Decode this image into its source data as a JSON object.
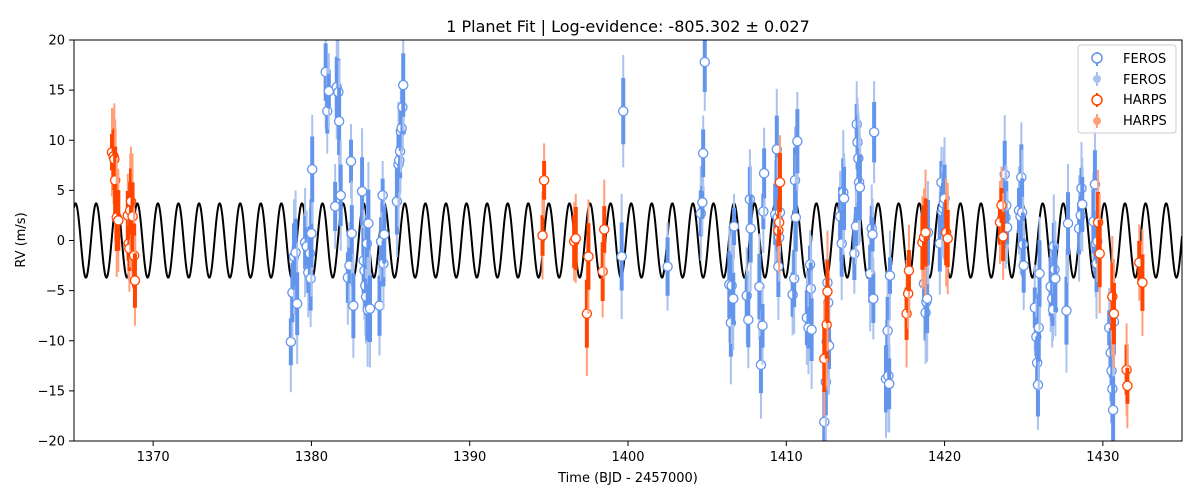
{
  "chart_data": {
    "type": "scatter",
    "title": "1 Planet Fit | Log-evidence: -805.302 ± 0.027",
    "xlabel": "Time (BJD - 2457000)",
    "ylabel": "RV (m/s)",
    "xlim": [
      1365,
      1435
    ],
    "ylim": [
      -20,
      20
    ],
    "xticks": [
      1370,
      1380,
      1390,
      1400,
      1410,
      1420,
      1430
    ],
    "yticks": [
      -20,
      -15,
      -10,
      -5,
      0,
      5,
      10,
      15,
      20
    ],
    "grid": false,
    "legend_position": "top-right",
    "legend": [
      {
        "label": "FEROS",
        "style": "open-circle",
        "color": "#6495ed"
      },
      {
        "label": "FEROS",
        "style": "faint-dot",
        "color": "#a9c2ef"
      },
      {
        "label": "HARPS",
        "style": "open-circle",
        "color": "#ff4500"
      },
      {
        "label": "HARPS",
        "style": "faint-dot",
        "color": "#ffa07a"
      }
    ],
    "model": {
      "amplitude": 3.7,
      "period": 1.3,
      "phase_ref": 1365.1,
      "color": "#000000"
    },
    "series": [
      {
        "name": "FEROS",
        "color": "#6495ed",
        "jitter_color": "#a9c2ef",
        "points": [
          [
            1378.7,
            -10.1
          ],
          [
            1378.8,
            -5.2
          ],
          [
            1378.9,
            -1.6
          ],
          [
            1379.0,
            -1.2
          ],
          [
            1379.1,
            -6.3
          ],
          [
            1379.6,
            -0.2
          ],
          [
            1379.7,
            -0.6
          ],
          [
            1379.8,
            -3.2
          ],
          [
            1379.9,
            -1.3
          ],
          [
            1379.95,
            -3.8
          ],
          [
            1380.0,
            0.7
          ],
          [
            1380.05,
            7.1
          ],
          [
            1380.9,
            16.8
          ],
          [
            1381.0,
            12.9
          ],
          [
            1381.1,
            14.9
          ],
          [
            1381.5,
            3.4
          ],
          [
            1381.6,
            15.3
          ],
          [
            1381.7,
            14.8
          ],
          [
            1381.75,
            11.9
          ],
          [
            1381.85,
            4.5
          ],
          [
            1382.3,
            -3.7
          ],
          [
            1382.4,
            -2.5
          ],
          [
            1382.5,
            7.9
          ],
          [
            1382.55,
            0.7
          ],
          [
            1382.65,
            -6.5
          ],
          [
            1383.2,
            4.9
          ],
          [
            1383.3,
            -2.0
          ],
          [
            1383.35,
            -3.0
          ],
          [
            1383.4,
            -4.5
          ],
          [
            1383.45,
            -5.6
          ],
          [
            1383.5,
            -0.3
          ],
          [
            1383.55,
            -6.9
          ],
          [
            1383.6,
            1.7
          ],
          [
            1383.7,
            -6.8
          ],
          [
            1384.3,
            -6.5
          ],
          [
            1384.4,
            -0.1
          ],
          [
            1384.5,
            4.5
          ],
          [
            1384.55,
            -2.3
          ],
          [
            1384.6,
            0.6
          ],
          [
            1385.4,
            3.9
          ],
          [
            1385.5,
            7.6
          ],
          [
            1385.55,
            8.0
          ],
          [
            1385.6,
            8.9
          ],
          [
            1385.65,
            10.9
          ],
          [
            1385.7,
            11.2
          ],
          [
            1385.75,
            13.3
          ],
          [
            1385.8,
            15.5
          ],
          [
            1399.6,
            -1.6
          ],
          [
            1399.7,
            12.9
          ],
          [
            1402.5,
            -2.6
          ],
          [
            1404.6,
            2.7
          ],
          [
            1404.7,
            3.8
          ],
          [
            1404.75,
            8.7
          ],
          [
            1404.85,
            17.8
          ],
          [
            1406.4,
            -4.4
          ],
          [
            1406.5,
            -8.2
          ],
          [
            1406.55,
            -4.5
          ],
          [
            1406.65,
            -5.8
          ],
          [
            1406.7,
            1.4
          ],
          [
            1407.5,
            -5.5
          ],
          [
            1407.6,
            -7.9
          ],
          [
            1407.7,
            4.1
          ],
          [
            1407.75,
            1.2
          ],
          [
            1408.3,
            -4.6
          ],
          [
            1408.4,
            -12.4
          ],
          [
            1408.5,
            -8.5
          ],
          [
            1408.55,
            2.9
          ],
          [
            1408.6,
            6.7
          ],
          [
            1409.3,
            2.6
          ],
          [
            1409.4,
            9.1
          ],
          [
            1409.45,
            2.3
          ],
          [
            1409.5,
            -2.6
          ],
          [
            1409.55,
            0.3
          ],
          [
            1409.6,
            2.8
          ],
          [
            1410.4,
            -5.4
          ],
          [
            1410.5,
            -3.8
          ],
          [
            1410.55,
            6.0
          ],
          [
            1410.6,
            2.3
          ],
          [
            1410.7,
            9.9
          ],
          [
            1411.3,
            -7.7
          ],
          [
            1411.4,
            -8.7
          ],
          [
            1411.5,
            -2.4
          ],
          [
            1411.55,
            -4.8
          ],
          [
            1411.6,
            -8.9
          ],
          [
            1412.4,
            -18.1
          ],
          [
            1412.5,
            -14.1
          ],
          [
            1412.55,
            -10.1
          ],
          [
            1412.6,
            -4.2
          ],
          [
            1412.65,
            -6.2
          ],
          [
            1412.7,
            -10.5
          ],
          [
            1413.4,
            2.4
          ],
          [
            1413.5,
            -0.3
          ],
          [
            1413.6,
            4.8
          ],
          [
            1413.65,
            4.2
          ],
          [
            1414.3,
            -1.3
          ],
          [
            1414.4,
            1.4
          ],
          [
            1414.45,
            11.6
          ],
          [
            1414.5,
            9.8
          ],
          [
            1414.55,
            8.2
          ],
          [
            1414.6,
            5.8
          ],
          [
            1414.65,
            5.3
          ],
          [
            1415.3,
            -3.3
          ],
          [
            1415.4,
            1.2
          ],
          [
            1415.45,
            0.6
          ],
          [
            1415.5,
            -5.8
          ],
          [
            1415.55,
            10.8
          ],
          [
            1416.3,
            -13.8
          ],
          [
            1416.4,
            -9.0
          ],
          [
            1416.45,
            -13.5
          ],
          [
            1416.5,
            -14.3
          ],
          [
            1416.55,
            -3.5
          ],
          [
            1418.7,
            -4.3
          ],
          [
            1418.8,
            -7.2
          ],
          [
            1418.85,
            -6.1
          ],
          [
            1418.9,
            -5.8
          ],
          [
            1418.95,
            0.8
          ],
          [
            1419.7,
            -0.3
          ],
          [
            1419.8,
            5.8
          ],
          [
            1419.85,
            2.9
          ],
          [
            1419.9,
            3.2
          ],
          [
            1419.95,
            3.7
          ],
          [
            1420.0,
            4.2
          ],
          [
            1423.8,
            6.6
          ],
          [
            1423.85,
            2.3
          ],
          [
            1423.9,
            3.5
          ],
          [
            1423.95,
            1.3
          ],
          [
            1424.7,
            3.0
          ],
          [
            1424.8,
            2.4
          ],
          [
            1424.85,
            6.3
          ],
          [
            1424.9,
            2.8
          ],
          [
            1424.95,
            -0.4
          ],
          [
            1425.0,
            -2.5
          ],
          [
            1425.7,
            -6.7
          ],
          [
            1425.8,
            -9.6
          ],
          [
            1425.85,
            -12.2
          ],
          [
            1425.9,
            -14.4
          ],
          [
            1425.95,
            -8.7
          ],
          [
            1426.0,
            -3.3
          ],
          [
            1426.7,
            -4.6
          ],
          [
            1426.8,
            -5.8
          ],
          [
            1426.85,
            -6.9
          ],
          [
            1426.9,
            -0.6
          ],
          [
            1426.95,
            -2.9
          ],
          [
            1427.0,
            -3.8
          ],
          [
            1427.7,
            -7.0
          ],
          [
            1427.8,
            1.7
          ],
          [
            1428.5,
            1.2
          ],
          [
            1428.6,
            2.5
          ],
          [
            1428.65,
            5.2
          ],
          [
            1428.7,
            3.6
          ],
          [
            1429.4,
            1.9
          ],
          [
            1429.5,
            5.6
          ],
          [
            1429.55,
            -0.3
          ],
          [
            1429.6,
            -2.3
          ],
          [
            1429.65,
            -0.1
          ],
          [
            1430.4,
            -8.7
          ],
          [
            1430.5,
            -11.2
          ],
          [
            1430.55,
            -13.0
          ],
          [
            1430.6,
            -14.8
          ],
          [
            1430.65,
            -16.9
          ],
          [
            1430.7,
            -8.1
          ]
        ]
      },
      {
        "name": "HARPS",
        "color": "#ff4500",
        "jitter_color": "#ffa07a",
        "points": [
          [
            1367.4,
            8.8
          ],
          [
            1367.5,
            8.4
          ],
          [
            1367.55,
            8.1
          ],
          [
            1367.6,
            6.0
          ],
          [
            1367.7,
            2.3
          ],
          [
            1367.8,
            2.0
          ],
          [
            1368.4,
            2.5
          ],
          [
            1368.45,
            -0.3
          ],
          [
            1368.5,
            -0.8
          ],
          [
            1368.55,
            3.0
          ],
          [
            1368.6,
            3.9
          ],
          [
            1368.7,
            2.4
          ],
          [
            1368.8,
            -1.5
          ],
          [
            1368.85,
            -4.0
          ],
          [
            1394.6,
            0.5
          ],
          [
            1394.7,
            6.0
          ],
          [
            1396.6,
            -0.1
          ],
          [
            1396.7,
            0.2
          ],
          [
            1397.4,
            -7.3
          ],
          [
            1397.5,
            -1.6
          ],
          [
            1398.4,
            -3.1
          ],
          [
            1398.5,
            1.1
          ],
          [
            1409.5,
            1.0
          ],
          [
            1409.55,
            1.8
          ],
          [
            1409.6,
            5.8
          ],
          [
            1412.4,
            -11.8
          ],
          [
            1412.55,
            -8.4
          ],
          [
            1412.6,
            -5.1
          ],
          [
            1417.6,
            -7.3
          ],
          [
            1417.7,
            -5.3
          ],
          [
            1417.75,
            -3.0
          ],
          [
            1418.6,
            -0.2
          ],
          [
            1418.7,
            0.3
          ],
          [
            1418.8,
            0.8
          ],
          [
            1420.1,
            0.8
          ],
          [
            1420.2,
            0.2
          ],
          [
            1423.5,
            1.8
          ],
          [
            1423.6,
            3.5
          ],
          [
            1423.7,
            0.4
          ],
          [
            1429.7,
            1.8
          ],
          [
            1429.8,
            -1.3
          ],
          [
            1430.6,
            -5.6
          ],
          [
            1430.7,
            -7.3
          ],
          [
            1431.5,
            -12.9
          ],
          [
            1431.55,
            -14.5
          ],
          [
            1432.3,
            -2.2
          ],
          [
            1432.5,
            -4.2
          ]
        ]
      }
    ]
  }
}
